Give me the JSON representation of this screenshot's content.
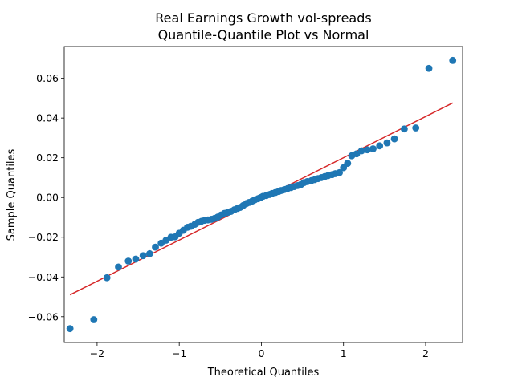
{
  "chart_data": {
    "type": "scatter",
    "title_line1": "Real Earnings Growth vol-spreads",
    "title_line2": "Quantile-Quantile Plot vs Normal",
    "xlabel": "Theoretical Quantiles",
    "ylabel": "Sample Quantiles",
    "xlim": [
      -2.4,
      2.45
    ],
    "ylim": [
      -0.073,
      0.076
    ],
    "x_ticks": [
      -2,
      -1,
      0,
      1,
      2
    ],
    "x_tick_labels": [
      "−2",
      "−1",
      "0",
      "1",
      "2"
    ],
    "y_ticks": [
      -0.06,
      -0.04,
      -0.02,
      0.0,
      0.02,
      0.04,
      0.06
    ],
    "y_tick_labels": [
      "−0.06",
      "−0.04",
      "−0.02",
      "0.00",
      "0.02",
      "0.04",
      "0.06"
    ],
    "grid": false,
    "colors": {
      "points": "#1f77b4",
      "line": "#d62728"
    },
    "reference_line": {
      "x": [
        -2.33,
        2.33
      ],
      "y": [
        -0.049,
        0.0476
      ]
    },
    "points": [
      [
        -2.33,
        -0.066
      ],
      [
        -2.04,
        -0.0615
      ],
      [
        -1.88,
        -0.0404
      ],
      [
        -1.74,
        -0.035
      ],
      [
        -1.62,
        -0.032
      ],
      [
        -1.53,
        -0.031
      ],
      [
        -1.44,
        -0.0293
      ],
      [
        -1.36,
        -0.0283
      ],
      [
        -1.29,
        -0.025
      ],
      [
        -1.22,
        -0.023
      ],
      [
        -1.16,
        -0.0215
      ],
      [
        -1.1,
        -0.02
      ],
      [
        -1.05,
        -0.0198
      ],
      [
        -1.0,
        -0.018
      ],
      [
        -0.95,
        -0.0165
      ],
      [
        -0.9,
        -0.015
      ],
      [
        -0.86,
        -0.0145
      ],
      [
        -0.81,
        -0.0135
      ],
      [
        -0.77,
        -0.0125
      ],
      [
        -0.73,
        -0.012
      ],
      [
        -0.69,
        -0.0115
      ],
      [
        -0.65,
        -0.0113
      ],
      [
        -0.61,
        -0.011
      ],
      [
        -0.57,
        -0.0105
      ],
      [
        -0.53,
        -0.0098
      ],
      [
        -0.49,
        -0.0088
      ],
      [
        -0.45,
        -0.008
      ],
      [
        -0.41,
        -0.0075
      ],
      [
        -0.37,
        -0.007
      ],
      [
        -0.33,
        -0.0062
      ],
      [
        -0.29,
        -0.0055
      ],
      [
        -0.26,
        -0.005
      ],
      [
        -0.22,
        -0.004
      ],
      [
        -0.18,
        -0.003
      ],
      [
        -0.15,
        -0.0025
      ],
      [
        -0.11,
        -0.0018
      ],
      [
        -0.08,
        -0.0012
      ],
      [
        -0.04,
        -0.0006
      ],
      [
        -0.01,
        0.0
      ],
      [
        0.02,
        0.0006
      ],
      [
        0.06,
        0.001
      ],
      [
        0.1,
        0.0015
      ],
      [
        0.13,
        0.002
      ],
      [
        0.17,
        0.0025
      ],
      [
        0.21,
        0.003
      ],
      [
        0.24,
        0.0035
      ],
      [
        0.28,
        0.004
      ],
      [
        0.32,
        0.0045
      ],
      [
        0.36,
        0.005
      ],
      [
        0.4,
        0.0055
      ],
      [
        0.44,
        0.006
      ],
      [
        0.48,
        0.0065
      ],
      [
        0.52,
        0.0075
      ],
      [
        0.56,
        0.008
      ],
      [
        0.61,
        0.0085
      ],
      [
        0.65,
        0.009
      ],
      [
        0.69,
        0.0095
      ],
      [
        0.73,
        0.01
      ],
      [
        0.77,
        0.0105
      ],
      [
        0.81,
        0.011
      ],
      [
        0.86,
        0.0115
      ],
      [
        0.9,
        0.012
      ],
      [
        0.95,
        0.0125
      ],
      [
        1.0,
        0.015
      ],
      [
        1.05,
        0.0172
      ],
      [
        1.1,
        0.021
      ],
      [
        1.16,
        0.022
      ],
      [
        1.22,
        0.0235
      ],
      [
        1.29,
        0.024
      ],
      [
        1.36,
        0.0245
      ],
      [
        1.44,
        0.026
      ],
      [
        1.53,
        0.0275
      ],
      [
        1.62,
        0.0295
      ],
      [
        1.74,
        0.0345
      ],
      [
        1.88,
        0.035
      ],
      [
        2.04,
        0.065
      ],
      [
        2.33,
        0.069
      ]
    ]
  }
}
